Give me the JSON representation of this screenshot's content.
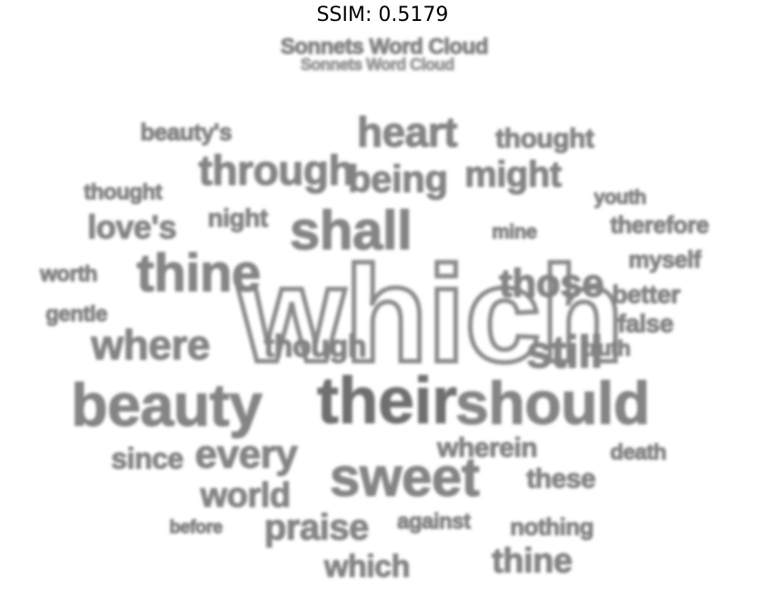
{
  "title": "SSIM: 0.5179",
  "words": [
    "Sonnets Word Cloud",
    "which",
    "their",
    "should",
    "sweet",
    "beauty",
    "thine",
    "shall",
    "heart",
    "still",
    "where",
    "through",
    "being",
    "might",
    "love's",
    "every",
    "praise",
    "thine",
    "those",
    "world",
    "since",
    "these",
    "nothing",
    "against",
    "worth",
    "therefore",
    "myself",
    "better",
    "false",
    "gentle",
    "youth",
    "death",
    "thought",
    "beauty's",
    "night",
    "truth",
    "which",
    "wherein",
    "before",
    "thought",
    "though",
    "mine"
  ]
}
